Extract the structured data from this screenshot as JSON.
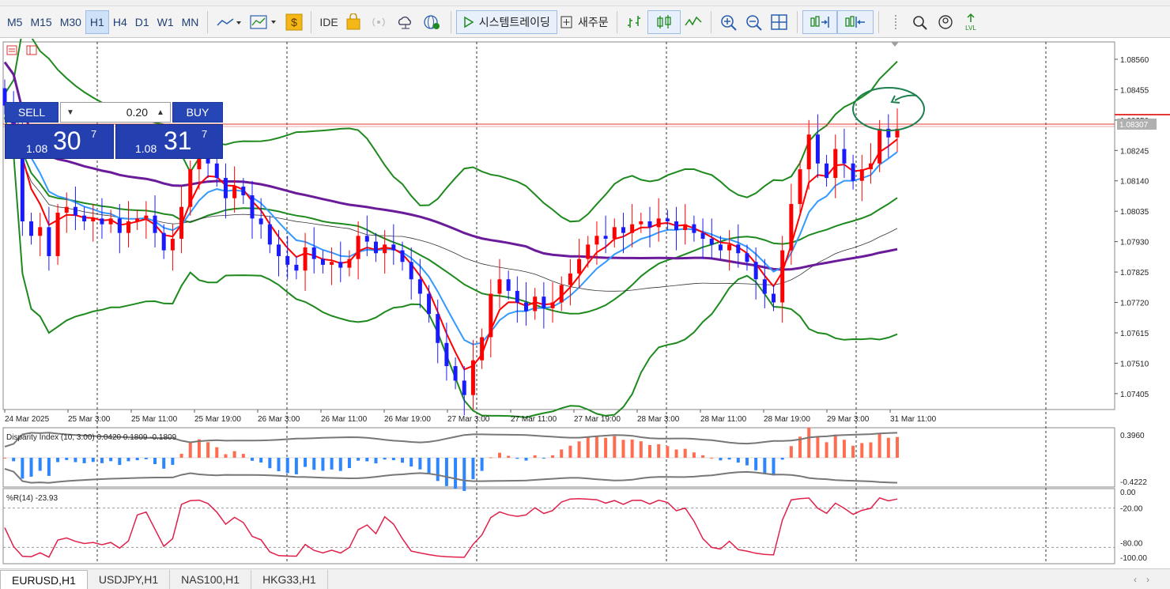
{
  "toolbar": {
    "timeframes": [
      "M5",
      "M15",
      "M30",
      "H1",
      "H4",
      "D1",
      "W1",
      "MN"
    ],
    "active_timeframe": "H1",
    "ide_label": "IDE",
    "algo_trading_label": "시스템트레이딩",
    "new_order_label": "새주문"
  },
  "trade_panel": {
    "sell_label": "SELL",
    "buy_label": "BUY",
    "volume": "0.20",
    "sell_price": {
      "prefix": "1.08",
      "big": "30",
      "sup": "7"
    },
    "buy_price": {
      "prefix": "1.08",
      "big": "31",
      "sup": "7"
    }
  },
  "tabs": [
    "EURUSD,H1",
    "USDJPY,H1",
    "NAS100,H1",
    "HKG33,H1"
  ],
  "active_tab": "EURUSD,H1",
  "colors": {
    "bull_candle": "#ff0000",
    "bear_candle": "#1a1aff",
    "ma_fast": "#ff0000",
    "ma_slow": "#3399ff",
    "ma_long": "#6a1b9a",
    "ma_black": "#333333",
    "bollinger": "#1e8a1e",
    "price_line": "#ff0000",
    "circle_annotation": "#1b7f4e",
    "wpr_line": "#e0204a"
  },
  "chart_data": [
    {
      "type": "candlestick",
      "symbol": "EURUSD",
      "timeframe": "H1",
      "current_price": "1.08307",
      "ylim": [
        1.0735,
        1.0862
      ],
      "y_ticks": [
        "1.08560",
        "1.08455",
        "1.08350",
        "1.08245",
        "1.08140",
        "1.08035",
        "1.07930",
        "1.07825",
        "1.07720",
        "1.07615",
        "1.07510",
        "1.07405"
      ],
      "x_tick_labels": [
        "24 Mar 2025",
        "25 Mar 3:00",
        "25 Mar 11:00",
        "25 Mar 19:00",
        "26 Mar 3:00",
        "26 Mar 11:00",
        "26 Mar 19:00",
        "27 Mar 3:00",
        "27 Mar 11:00",
        "27 Mar 19:00",
        "28 Mar 3:00",
        "28 Mar 11:00",
        "28 Mar 19:00",
        "29 Mar 3:00",
        "31 Mar 11:00"
      ],
      "close": [
        1.084,
        1.0832,
        1.08,
        1.0795,
        1.0798,
        1.0788,
        1.0803,
        1.0805,
        1.0802,
        1.08,
        1.0801,
        1.0799,
        1.0801,
        1.0796,
        1.08,
        1.0801,
        1.0802,
        1.0796,
        1.079,
        1.0794,
        1.0805,
        1.0818,
        1.0822,
        1.082,
        1.0815,
        1.0808,
        1.0812,
        1.0809,
        1.0801,
        1.0799,
        1.0792,
        1.0788,
        1.0785,
        1.0783,
        1.0791,
        1.0787,
        1.0785,
        1.0786,
        1.0784,
        1.0787,
        1.0795,
        1.0793,
        1.0789,
        1.0792,
        1.079,
        1.0786,
        1.078,
        1.0775,
        1.0768,
        1.0758,
        1.075,
        1.0745,
        1.074,
        1.0752,
        1.076,
        1.0775,
        1.078,
        1.0776,
        1.0772,
        1.0769,
        1.0774,
        1.077,
        1.0772,
        1.0778,
        1.0782,
        1.0787,
        1.0792,
        1.0795,
        1.0794,
        1.0798,
        1.0796,
        1.0799,
        1.08,
        1.0798,
        1.0801,
        1.08,
        1.0797,
        1.0799,
        1.0796,
        1.0794,
        1.0792,
        1.079,
        1.0792,
        1.0789,
        1.0786,
        1.078,
        1.0775,
        1.0772,
        1.079,
        1.0806,
        1.0818,
        1.083,
        1.082,
        1.0815,
        1.0825,
        1.082,
        1.0814,
        1.0818,
        1.082,
        1.0832,
        1.0829,
        1.0832
      ],
      "indicators": [
        "Bollinger Bands",
        "MA fast (red)",
        "MA (blue)",
        "MA (purple)",
        "MA (black)"
      ]
    },
    {
      "type": "histogram",
      "title": "Disparity Index (10, 3.00) 0.0420 0.1809 -0.1809",
      "y_ticks": [
        "0.3960",
        "-0.4222"
      ],
      "ylim": [
        -0.4222,
        0.396
      ]
    },
    {
      "type": "line",
      "title": "%R(14) -23.93",
      "y_ticks": [
        "0.00",
        "-20.00",
        "-80.00",
        "-100.00"
      ],
      "ylim": [
        -100,
        0
      ],
      "levels": [
        -20,
        -80
      ]
    }
  ]
}
